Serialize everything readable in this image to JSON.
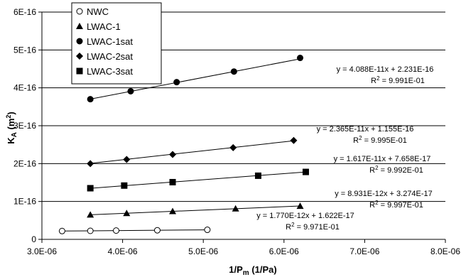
{
  "chart_data": {
    "type": "scatter",
    "xlabel": "1/P",
    "xlabel_sub": "m",
    "xlabel_tail": " (1/Pa)",
    "ylabel": "K",
    "ylabel_sub": "A",
    "ylabel_tail": " (m",
    "ylabel_sup": "2",
    "ylabel_close": ")",
    "xlim": [
      3e-06,
      8e-06
    ],
    "ylim": [
      0,
      6e-16
    ],
    "x_ticks": [
      3e-06,
      4e-06,
      5e-06,
      6e-06,
      7e-06,
      8e-06
    ],
    "x_tick_labels": [
      "3.0E-06",
      "4.0E-06",
      "5.0E-06",
      "6.0E-06",
      "7.0E-06",
      "8.0E-06"
    ],
    "y_ticks": [
      0,
      1e-16,
      2e-16,
      3e-16,
      4e-16,
      5e-16,
      6e-16
    ],
    "y_tick_labels": [
      "0",
      "1E-16",
      "2E-16",
      "3E-16",
      "4E-16",
      "5E-16",
      "6E-16"
    ],
    "grid": "horizontal",
    "legend_position": "top-left",
    "series": [
      {
        "name": "NWC",
        "marker": "circle-open",
        "points": [
          [
            3.25e-06,
            2.2e-17
          ],
          [
            3.6e-06,
            2.25e-17
          ],
          [
            3.92e-06,
            2.32e-17
          ],
          [
            4.43e-06,
            2.4e-17
          ],
          [
            5.05e-06,
            2.52e-17
          ]
        ],
        "fit": {
          "slope": 1.77e-12,
          "intercept": 1.622e-17
        },
        "equation": "y = 1.770E-12x + 1.622E-17",
        "r2_label": "R",
        "r2_sup": "2",
        "r2_value": " = 9.971E-01"
      },
      {
        "name": "LWAC-1",
        "marker": "triangle",
        "points": [
          [
            3.6e-06,
            6.5e-17
          ],
          [
            4.05e-06,
            6.9e-17
          ],
          [
            4.62e-06,
            7.4e-17
          ],
          [
            5.4e-06,
            8.1e-17
          ],
          [
            6.2e-06,
            8.8e-17
          ]
        ],
        "fit": {
          "slope": 8.931e-12,
          "intercept": 3.274e-17
        },
        "equation": "y = 8.931E-12x + 3.274E-17",
        "r2_label": "R",
        "r2_sup": "2",
        "r2_value": " = 9.997E-01"
      },
      {
        "name": "LWAC-1sat",
        "marker": "circle-filled",
        "points": [
          [
            3.6e-06,
            3.7e-16
          ],
          [
            4.1e-06,
            3.91e-16
          ],
          [
            4.67e-06,
            4.15e-16
          ],
          [
            5.38e-06,
            4.43e-16
          ],
          [
            6.2e-06,
            4.79e-16
          ]
        ],
        "fit": {
          "slope": 4.088e-11,
          "intercept": 2.231e-16
        },
        "equation": "y = 4.088E-11x + 2.231E-16",
        "r2_label": "R",
        "r2_sup": "2",
        "r2_value": " = 9.991E-01"
      },
      {
        "name": "LWAC-2sat",
        "marker": "diamond",
        "points": [
          [
            3.6e-06,
            2e-16
          ],
          [
            4.05e-06,
            2.11e-16
          ],
          [
            4.62e-06,
            2.24e-16
          ],
          [
            5.37e-06,
            2.42e-16
          ],
          [
            6.12e-06,
            2.61e-16
          ]
        ],
        "fit": {
          "slope": 2.365e-11,
          "intercept": 1.155e-16
        },
        "equation": "y = 2.365E-11x + 1.155E-16",
        "r2_label": "R",
        "r2_sup": "2",
        "r2_value": " = 9.995E-01"
      },
      {
        "name": "LWAC-3sat",
        "marker": "square",
        "points": [
          [
            3.6e-06,
            1.35e-16
          ],
          [
            4.02e-06,
            1.42e-16
          ],
          [
            4.62e-06,
            1.51e-16
          ],
          [
            5.68e-06,
            1.68e-16
          ],
          [
            6.27e-06,
            1.78e-16
          ]
        ],
        "fit": {
          "slope": 1.617e-11,
          "intercept": 7.658e-17
        },
        "equation": "y = 1.617E-11x + 7.658E-17",
        "r2_label": "R",
        "r2_sup": "2",
        "r2_value": " = 9.992E-01"
      }
    ]
  }
}
